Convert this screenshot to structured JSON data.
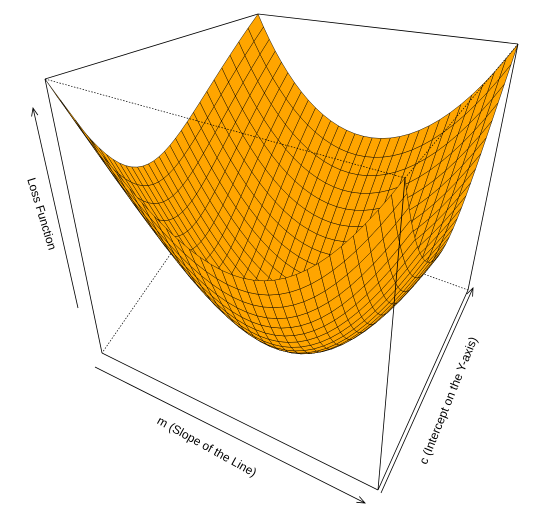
{
  "chart_data": {
    "type": "surface3d",
    "title": "",
    "xlabel": "m (Slope of the Line)",
    "ylabel": "c (Intercept on the Y-axis)",
    "zlabel": "Loss Function",
    "surface_function": "z = x^2 + y^2 (paraboloid bowl)",
    "x_range": [
      -1,
      1
    ],
    "y_range": [
      -1,
      1
    ],
    "z_range": [
      0,
      2
    ],
    "grid_resolution": 31,
    "surface_color": "#ffa500",
    "mesh_color": "#000000",
    "box": true,
    "axis_ticks": false
  }
}
